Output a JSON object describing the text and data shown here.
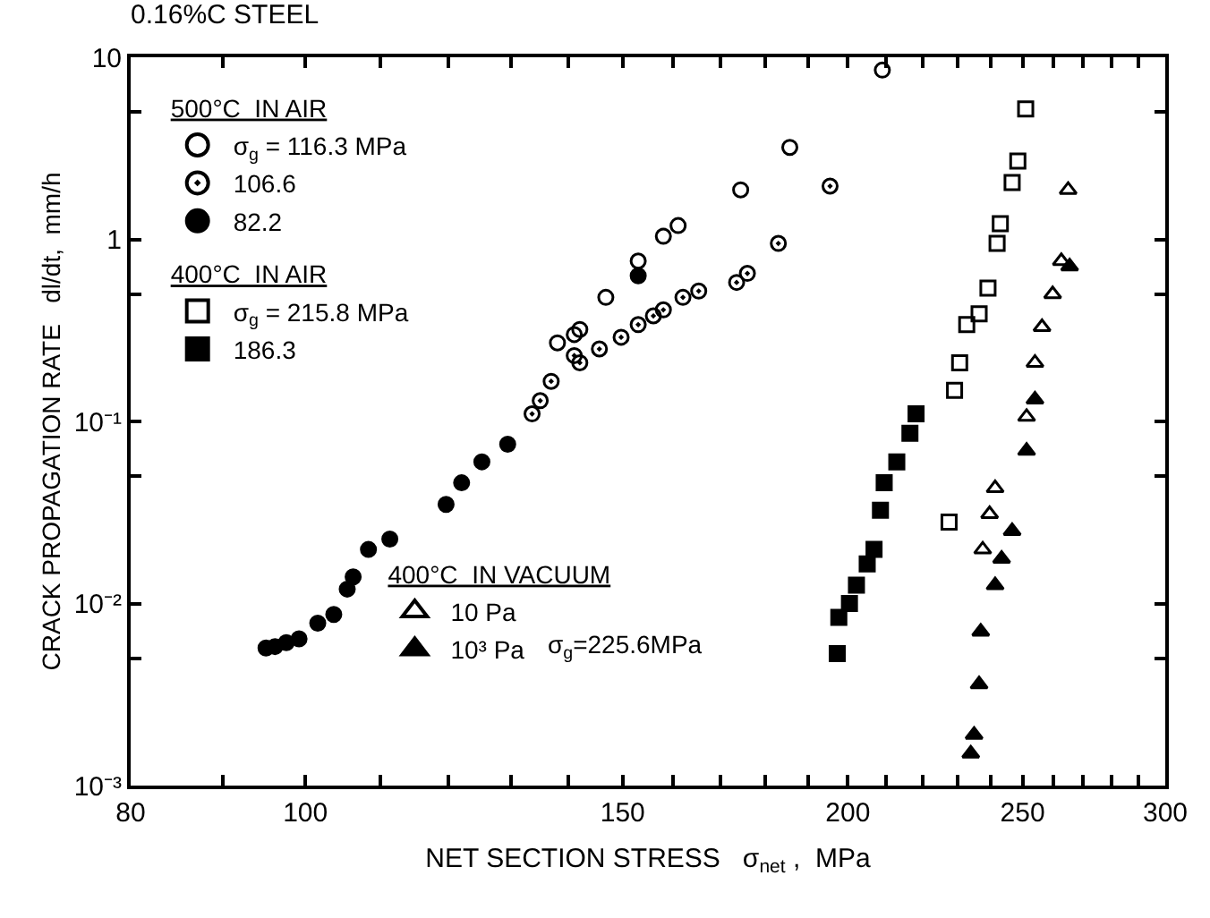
{
  "chart_data": {
    "type": "scatter",
    "title": "0.16%C STEEL",
    "xlabel": "NET SECTION STRESS   σ$_{net}$ ,  MPa",
    "ylabel": "CRACK PROPAGATION RATE   dl/dt,  mm/h",
    "log": "xy",
    "legend": "top left",
    "xlim": [
      80,
      300
    ],
    "ylim": [
      0.001,
      10
    ],
    "xticks": [
      80,
      {
        "value": 90,
        "label": null
      },
      100,
      {
        "value": 110,
        "label": null
      },
      {
        "value": 120,
        "label": null
      },
      {
        "value": 130,
        "label": null
      },
      {
        "value": 140,
        "label": null
      },
      150,
      {
        "value": 160,
        "label": null
      },
      {
        "value": 170,
        "label": null
      },
      {
        "value": 180,
        "label": null
      },
      {
        "value": 190,
        "label": null
      },
      200,
      {
        "value": 210,
        "label": null
      },
      {
        "value": 220,
        "label": null
      },
      {
        "value": 230,
        "label": null
      },
      {
        "value": 240,
        "label": null
      },
      250,
      {
        "value": 260,
        "label": null
      },
      {
        "value": 270,
        "label": null
      },
      {
        "value": 280,
        "label": null
      },
      {
        "value": 290,
        "label": null
      },
      300
    ],
    "yticks": [
      {
        "value": 0.001,
        "label": "10⁻³"
      },
      {
        "value": 0.005,
        "label": null
      },
      {
        "value": 0.01,
        "label": "10⁻²"
      },
      {
        "value": 0.05,
        "label": null
      },
      {
        "value": 0.1,
        "label": "10⁻¹"
      },
      {
        "value": 0.5,
        "label": null
      },
      1,
      {
        "value": 5,
        "label": null
      },
      10
    ],
    "annotations": [
      "500°C  IN AIR",
      "400°C  IN AIR",
      "400°C  IN VACUUM",
      "σ$_{g}$=225.6MPa"
    ],
    "series": [
      {
        "name": "σ$_{g}$ = 116.3 MPa",
        "marker": "circle-open",
        "color": "#000000",
        "x": [
          209,
          185.7,
          174.4,
          161,
          158,
          153,
          146.8,
          142,
          141,
          138
        ],
        "values": [
          8.5,
          3.2,
          1.87,
          1.19,
          1.04,
          0.76,
          0.48,
          0.32,
          0.3,
          0.27
        ]
      },
      {
        "name": "106.6",
        "marker": "circle-open-dot",
        "color": "#000000",
        "x": [
          195.5,
          183,
          175.9,
          173.5,
          165.3,
          162,
          158,
          156,
          153,
          149.7,
          145.6,
          142,
          141,
          136.9,
          135,
          133.6
        ],
        "values": [
          1.96,
          0.95,
          0.65,
          0.58,
          0.52,
          0.48,
          0.41,
          0.38,
          0.34,
          0.29,
          0.25,
          0.21,
          0.23,
          0.166,
          0.13,
          0.11
        ]
      },
      {
        "name": "82.2",
        "marker": "circle",
        "color": "#000000",
        "x": [
          153,
          129.5,
          125.3,
          122.1,
          119.7,
          111.4,
          108.4,
          106.3,
          105.5,
          103.7,
          101.6,
          99.2,
          97.6,
          96.2,
          95.1
        ],
        "values": [
          0.63,
          0.075,
          0.06,
          0.046,
          0.035,
          0.0226,
          0.0198,
          0.014,
          0.012,
          0.0087,
          0.0078,
          0.0064,
          0.0061,
          0.0058,
          0.0057
        ]
      },
      {
        "name": "σ$_{g}$ = 215.8 MPa",
        "marker": "square-open",
        "color": "#000000",
        "x": [
          251,
          248.5,
          246.7,
          243,
          242,
          239.2,
          236.5,
          232.8,
          230.7,
          229.2,
          227.6
        ],
        "values": [
          5.2,
          2.69,
          2.05,
          1.22,
          0.95,
          0.54,
          0.39,
          0.34,
          0.21,
          0.148,
          0.028
        ]
      },
      {
        "name": "186.3",
        "marker": "square",
        "color": "#000000",
        "x": [
          218.2,
          216.5,
          212.9,
          209.5,
          208.5,
          206.8,
          205,
          202.2,
          200.4,
          197.7,
          197.3
        ],
        "values": [
          0.11,
          0.086,
          0.06,
          0.046,
          0.0325,
          0.0198,
          0.0165,
          0.0126,
          0.01,
          0.0084,
          0.0053
        ]
      },
      {
        "name": "10 Pa",
        "marker": "triangle-up-open",
        "color": "#000000",
        "x": [
          265,
          262.7,
          259.8,
          256.3,
          254,
          251.3,
          241.4,
          239.7,
          237.6
        ],
        "values": [
          1.87,
          0.76,
          0.5,
          0.33,
          0.21,
          0.106,
          0.043,
          0.031,
          0.0198
        ]
      },
      {
        "name": "10³ Pa",
        "marker": "triangle-up",
        "color": "#000000",
        "x": [
          265.5,
          254,
          251.3,
          246.7,
          243.4,
          241.4,
          237,
          236.5,
          235,
          234
        ],
        "values": [
          0.71,
          0.132,
          0.069,
          0.025,
          0.0176,
          0.0126,
          0.007,
          0.0036,
          0.0019,
          0.0015
        ]
      }
    ]
  }
}
